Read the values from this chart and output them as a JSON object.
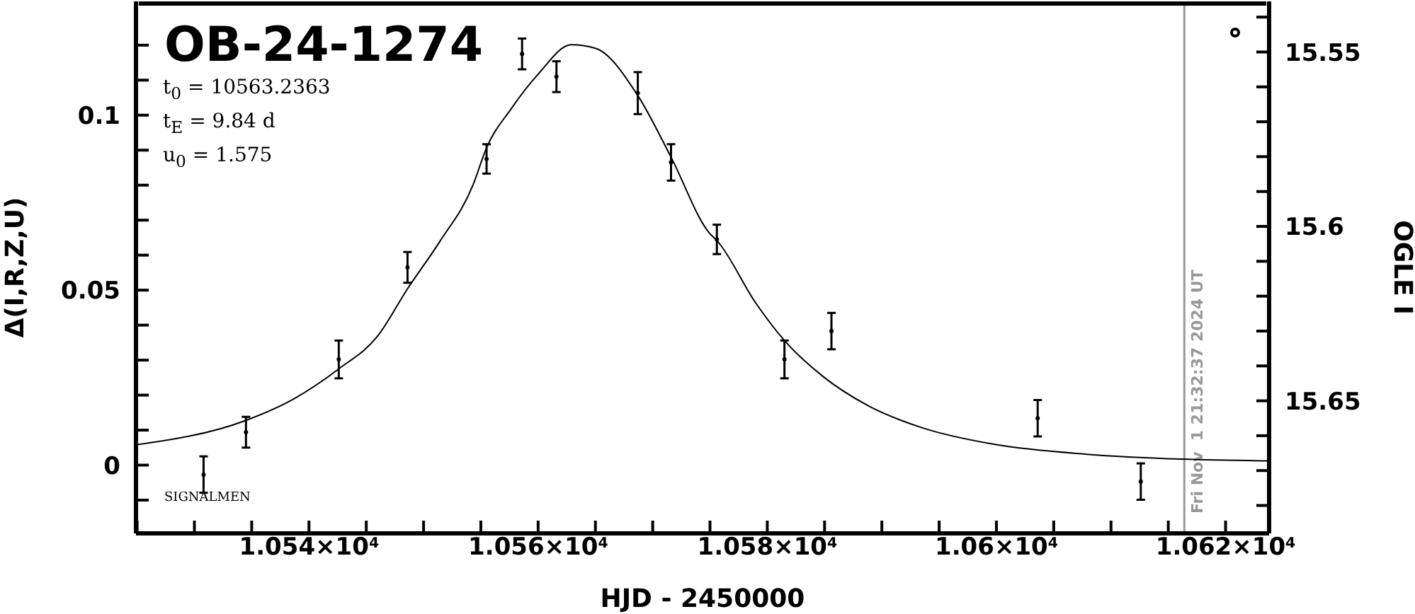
{
  "chart_data": {
    "type": "scatter",
    "title": "OB-24-1274",
    "xlabel": "HJD - 2450000",
    "ylabel": "Δ(I,R,Z,U)",
    "y2label": "OGLE I",
    "annotations": [
      "t$_{0}$ = 10563.2363",
      "t$_{E}$ = 9.84 d",
      "u$_{0}$ = 1.575",
      "SIGNALMEN",
      "Fri Nov  1 21:32:37 2024 UT"
    ],
    "marker": "circle",
    "xlim": [
      10524.9,
      10623.8
    ],
    "xticks": [
      {
        "value": 10525,
        "label": null
      },
      {
        "value": 10530,
        "label": null
      },
      {
        "value": 10535,
        "label": null
      },
      {
        "value": 10540,
        "label": "1.054×10$^{4}$"
      },
      {
        "value": 10545,
        "label": null
      },
      {
        "value": 10550,
        "label": null
      },
      {
        "value": 10555,
        "label": null
      },
      {
        "value": 10560,
        "label": "1.056×10$^{4}$"
      },
      {
        "value": 10565,
        "label": null
      },
      {
        "value": 10570,
        "label": null
      },
      {
        "value": 10575,
        "label": null
      },
      {
        "value": 10580,
        "label": "1.058×10$^{4}$"
      },
      {
        "value": 10585,
        "label": null
      },
      {
        "value": 10590,
        "label": null
      },
      {
        "value": 10595,
        "label": null
      },
      {
        "value": 10600,
        "label": "1.06×10$^{4}$"
      },
      {
        "value": 10605,
        "label": null
      },
      {
        "value": 10610,
        "label": null
      },
      {
        "value": 10615,
        "label": null
      },
      {
        "value": 10620,
        "label": "1.062×10$^{4}$"
      }
    ],
    "ylim": [
      -0.0195,
      0.1325
    ],
    "yticks": [
      {
        "value": -0.01,
        "label": null
      },
      0,
      {
        "value": 0.01,
        "label": null
      },
      {
        "value": 0.02,
        "label": null
      },
      {
        "value": 0.03,
        "label": null
      },
      {
        "value": 0.04,
        "label": null
      },
      0.05,
      {
        "value": 0.06,
        "label": null
      },
      {
        "value": 0.07,
        "label": null
      },
      {
        "value": 0.08,
        "label": null
      },
      {
        "value": 0.09,
        "label": null
      },
      0.1,
      {
        "value": 0.11,
        "label": null
      },
      {
        "value": 0.12,
        "label": null
      }
    ],
    "y2lim": [
      15.688,
      15.5355
    ],
    "y2ticks": [
      {
        "value": 15.54,
        "label": null
      },
      15.55,
      {
        "value": 15.56,
        "label": null
      },
      {
        "value": 15.57,
        "label": null
      },
      {
        "value": 15.58,
        "label": null
      },
      {
        "value": 15.59,
        "label": null
      },
      15.6,
      {
        "value": 15.61,
        "label": null
      },
      {
        "value": 15.62,
        "label": null
      },
      {
        "value": 15.63,
        "label": null
      },
      {
        "value": 15.64,
        "label": null
      },
      15.65,
      {
        "value": 15.66,
        "label": null
      },
      {
        "value": 15.67,
        "label": null
      },
      {
        "value": 15.68,
        "label": null
      }
    ],
    "ref_lines": [
      {
        "axis": "x",
        "value": 10616.4,
        "color": "#999999"
      }
    ],
    "series": [
      {
        "color": "#000000",
        "x": [
          10530.8,
          10534.5,
          10542.6,
          10548.6,
          10555.5,
          10558.6,
          10561.6,
          10568.7,
          10571.6,
          10575.6,
          10581.5,
          10585.6,
          10603.6,
          10612.6
        ],
        "values": [
          -0.0027,
          0.0094,
          0.0302,
          0.0565,
          0.0875,
          0.1175,
          0.111,
          0.1063,
          0.0865,
          0.0645,
          0.0302,
          0.0383,
          0.0134,
          -0.0047
        ],
        "errors": [
          0.0052,
          0.0044,
          0.0054,
          0.0044,
          0.0042,
          0.0044,
          0.0044,
          0.006,
          0.0052,
          0.0042,
          0.0054,
          0.0052,
          0.0052,
          0.0052
        ]
      },
      {
        "type": "line",
        "marker": "none",
        "color": "#000000",
        "x": [
          10524.9,
          10534.5,
          10538.6,
          10542.6,
          10546.0,
          10548.6,
          10551.4,
          10554.3,
          10555.5,
          10557.6,
          10560.0,
          10562.9,
          10565.0,
          10568.7,
          10571.6,
          10574.9,
          10575.7,
          10579.0,
          10581.5,
          10584.8,
          10588.9,
          10593.5,
          10599.7,
          10607.9,
          10616.2,
          10623.8
        ],
        "values": [
          0.0058,
          0.0128,
          0.0188,
          0.0275,
          0.0369,
          0.0504,
          0.0638,
          0.0799,
          0.0907,
          0.1016,
          0.1117,
          0.1201,
          0.1191,
          0.1056,
          0.088,
          0.0665,
          0.0638,
          0.0463,
          0.0356,
          0.0255,
          0.0168,
          0.0107,
          0.006,
          0.0031,
          0.0017,
          0.0012
        ]
      }
    ]
  }
}
